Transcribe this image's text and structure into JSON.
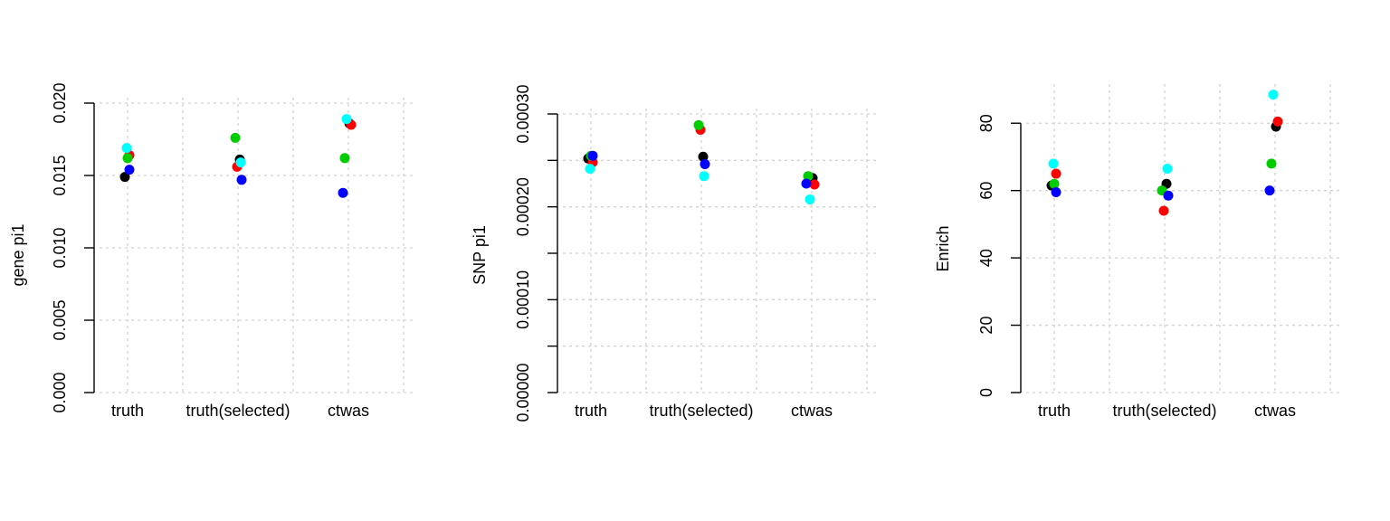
{
  "chart_data": [
    {
      "type": "scatter",
      "title": "",
      "xlabel": "",
      "ylabel": "gene pi1",
      "categories": [
        "truth",
        "truth(selected)",
        "ctwas"
      ],
      "ylim": [
        0,
        0.02
      ],
      "yticks": [
        "0.000",
        "0.005",
        "0.010",
        "0.015",
        "0.020"
      ],
      "ytick_values": [
        0,
        0.005,
        0.01,
        0.015,
        0.02
      ],
      "grid": true,
      "series": [
        {
          "name": "black",
          "color": "#000000",
          "values": [
            0.0149,
            0.0161,
            0.0186
          ]
        },
        {
          "name": "red",
          "color": "#ff0000",
          "values": [
            0.0164,
            0.0156,
            0.0185
          ]
        },
        {
          "name": "green",
          "color": "#00cd00",
          "values": [
            0.0162,
            0.0176,
            0.0162
          ]
        },
        {
          "name": "blue",
          "color": "#0000ff",
          "values": [
            0.0154,
            0.0147,
            0.0138
          ]
        },
        {
          "name": "cyan",
          "color": "#00ffff",
          "values": [
            0.0169,
            0.0159,
            0.0189
          ]
        }
      ]
    },
    {
      "type": "scatter",
      "title": "",
      "xlabel": "",
      "ylabel": "SNP pi1",
      "categories": [
        "truth",
        "truth(selected)",
        "ctwas"
      ],
      "ylim": [
        0,
        0.0003
      ],
      "yticks": [
        "0.00000",
        "",
        "0.00010",
        "",
        "0.00020",
        "",
        "0.00030"
      ],
      "ytick_values": [
        0,
        5e-05,
        0.0001,
        0.00015,
        0.0002,
        0.00025,
        0.0003
      ],
      "grid": true,
      "series": [
        {
          "name": "black",
          "color": "#000000",
          "values": [
            0.000252,
            0.000254,
            0.000231
          ]
        },
        {
          "name": "red",
          "color": "#ff0000",
          "values": [
            0.000248,
            0.000283,
            0.000224
          ]
        },
        {
          "name": "green",
          "color": "#00cd00",
          "values": [
            0.000255,
            0.000288,
            0.000233
          ]
        },
        {
          "name": "blue",
          "color": "#0000ff",
          "values": [
            0.000255,
            0.000246,
            0.000225
          ]
        },
        {
          "name": "cyan",
          "color": "#00ffff",
          "values": [
            0.000241,
            0.000233,
            0.000208
          ]
        }
      ]
    },
    {
      "type": "scatter",
      "title": "",
      "xlabel": "",
      "ylabel": "Enrich",
      "categories": [
        "truth",
        "truth(selected)",
        "ctwas"
      ],
      "ylim": [
        0,
        90
      ],
      "yticks": [
        "0",
        "20",
        "40",
        "60",
        "80"
      ],
      "ytick_values": [
        0,
        20,
        40,
        60,
        80
      ],
      "grid": true,
      "series": [
        {
          "name": "black",
          "color": "#000000",
          "values": [
            61.5,
            62,
            79
          ]
        },
        {
          "name": "red",
          "color": "#ff0000",
          "values": [
            65,
            54,
            80.5
          ]
        },
        {
          "name": "green",
          "color": "#00cd00",
          "values": [
            62,
            60,
            68
          ]
        },
        {
          "name": "blue",
          "color": "#0000ff",
          "values": [
            59.5,
            58.5,
            60
          ]
        },
        {
          "name": "cyan",
          "color": "#00ffff",
          "values": [
            68,
            66.5,
            88.5
          ]
        }
      ]
    }
  ]
}
